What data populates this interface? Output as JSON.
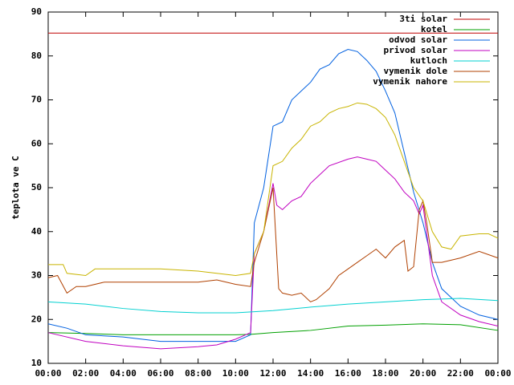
{
  "chart_data": {
    "type": "line",
    "ylabel": "teplota ve C",
    "xlim": [
      0,
      24
    ],
    "xticks": [
      {
        "value": 0,
        "label": "00:00"
      },
      {
        "value": 2,
        "label": "02:00"
      },
      {
        "value": 4,
        "label": "04:00"
      },
      {
        "value": 6,
        "label": "06:00"
      },
      {
        "value": 8,
        "label": "08:00"
      },
      {
        "value": 10,
        "label": "10:00"
      },
      {
        "value": 12,
        "label": "12:00"
      },
      {
        "value": 14,
        "label": "14:00"
      },
      {
        "value": 16,
        "label": "16:00"
      },
      {
        "value": 18,
        "label": "18:00"
      },
      {
        "value": 20,
        "label": "20:00"
      },
      {
        "value": 22,
        "label": "22:00"
      },
      {
        "value": 24,
        "label": "00:00"
      }
    ],
    "ylim": [
      10,
      90
    ],
    "yticks": [
      10,
      20,
      30,
      40,
      50,
      60,
      70,
      80,
      90
    ],
    "legend": "top-right",
    "series": [
      {
        "name": "3ti solar",
        "color": "#c00000",
        "x": [
          0,
          24
        ],
        "values": [
          85.2,
          85.2
        ]
      },
      {
        "name": "kotel",
        "color": "#00a000",
        "x": [
          0,
          2,
          4,
          6,
          8,
          10,
          10.8,
          12,
          14,
          16,
          18,
          20,
          22,
          24
        ],
        "values": [
          17,
          16.8,
          16.5,
          16.5,
          16.5,
          16.5,
          16.6,
          17,
          17.5,
          18.5,
          18.7,
          19,
          18.8,
          17.5
        ]
      },
      {
        "name": "odvod solar",
        "color": "#0060e0",
        "x": [
          0,
          1,
          2,
          4,
          6,
          8,
          10,
          10.8,
          11,
          11.5,
          12,
          12.5,
          13,
          14,
          14.5,
          15,
          15.5,
          16,
          16.5,
          17,
          17.5,
          18,
          18.5,
          19,
          19.5,
          20,
          20.5,
          21,
          22,
          23,
          24
        ],
        "values": [
          19,
          18,
          16.5,
          16,
          15,
          15,
          15,
          16.5,
          42,
          50,
          64,
          65,
          70,
          74,
          77,
          78,
          80.5,
          81.5,
          81,
          79,
          76.5,
          72,
          67,
          58,
          49,
          42,
          33,
          27,
          23,
          21,
          20
        ]
      },
      {
        "name": "privod solar",
        "color": "#c000c0",
        "x": [
          0,
          2,
          4,
          6,
          8,
          9,
          10,
          10.8,
          11,
          11.5,
          12,
          12.2,
          12.5,
          13,
          13.5,
          14,
          14.5,
          15,
          16,
          16.5,
          17,
          17.5,
          18,
          18.5,
          19,
          19.5,
          19.8,
          20,
          20.5,
          21,
          22,
          23,
          24
        ],
        "values": [
          17,
          15,
          14,
          13.3,
          13.8,
          14.2,
          15.5,
          17,
          35,
          40,
          51,
          46,
          45,
          47,
          48,
          51,
          53,
          55,
          56.5,
          57,
          56.5,
          56,
          54,
          52,
          49,
          47,
          44,
          46,
          30,
          24,
          21,
          19.5,
          18.5
        ]
      },
      {
        "name": "kutloch",
        "color": "#00d0d0",
        "x": [
          0,
          2,
          4,
          6,
          8,
          10,
          12,
          14,
          16,
          18,
          20,
          22,
          24
        ],
        "values": [
          24,
          23.5,
          22.5,
          21.8,
          21.5,
          21.5,
          22,
          22.8,
          23.5,
          24,
          24.5,
          24.8,
          24.3
        ]
      },
      {
        "name": "vymenik dole",
        "color": "#b04000",
        "x": [
          0,
          0.5,
          1,
          1.5,
          2,
          3,
          6,
          8,
          9,
          10,
          10.8,
          11,
          11.5,
          12,
          12.3,
          12.5,
          13,
          13.5,
          14,
          14.3,
          15,
          15.5,
          16,
          16.5,
          17,
          17.5,
          18,
          18.5,
          19,
          19.2,
          19.5,
          19.8,
          20,
          20.2,
          20.5,
          21,
          21.5,
          22,
          23,
          24
        ],
        "values": [
          29.5,
          30,
          26,
          27.5,
          27.5,
          28.5,
          28.5,
          28.5,
          29,
          28,
          27.5,
          33,
          40,
          50,
          27,
          26,
          25.5,
          26,
          24,
          24.5,
          27,
          30,
          31.5,
          33,
          34.5,
          36,
          34,
          36.5,
          38,
          31,
          32,
          45,
          47,
          42,
          33,
          33,
          33.5,
          34,
          35.5,
          34
        ]
      },
      {
        "name": "vymenik nahore",
        "color": "#c8b400",
        "x": [
          0,
          0.8,
          1,
          2,
          2.5,
          4,
          6,
          8,
          10,
          10.8,
          11,
          11.5,
          12,
          12.5,
          13,
          13.5,
          14,
          14.5,
          15,
          15.5,
          16,
          16.5,
          17,
          17.5,
          18,
          18.5,
          19,
          19.5,
          20,
          20.5,
          21,
          21.5,
          22,
          23,
          23.5,
          24
        ],
        "values": [
          32.5,
          32.5,
          30.5,
          30,
          31.5,
          31.5,
          31.5,
          31,
          30,
          30.5,
          35,
          40,
          55,
          56,
          59,
          61,
          64,
          65,
          67,
          68,
          68.5,
          69.3,
          69,
          68,
          66,
          62,
          56,
          50,
          47,
          40,
          36.5,
          36,
          39,
          39.5,
          39.5,
          38.5
        ]
      }
    ]
  }
}
